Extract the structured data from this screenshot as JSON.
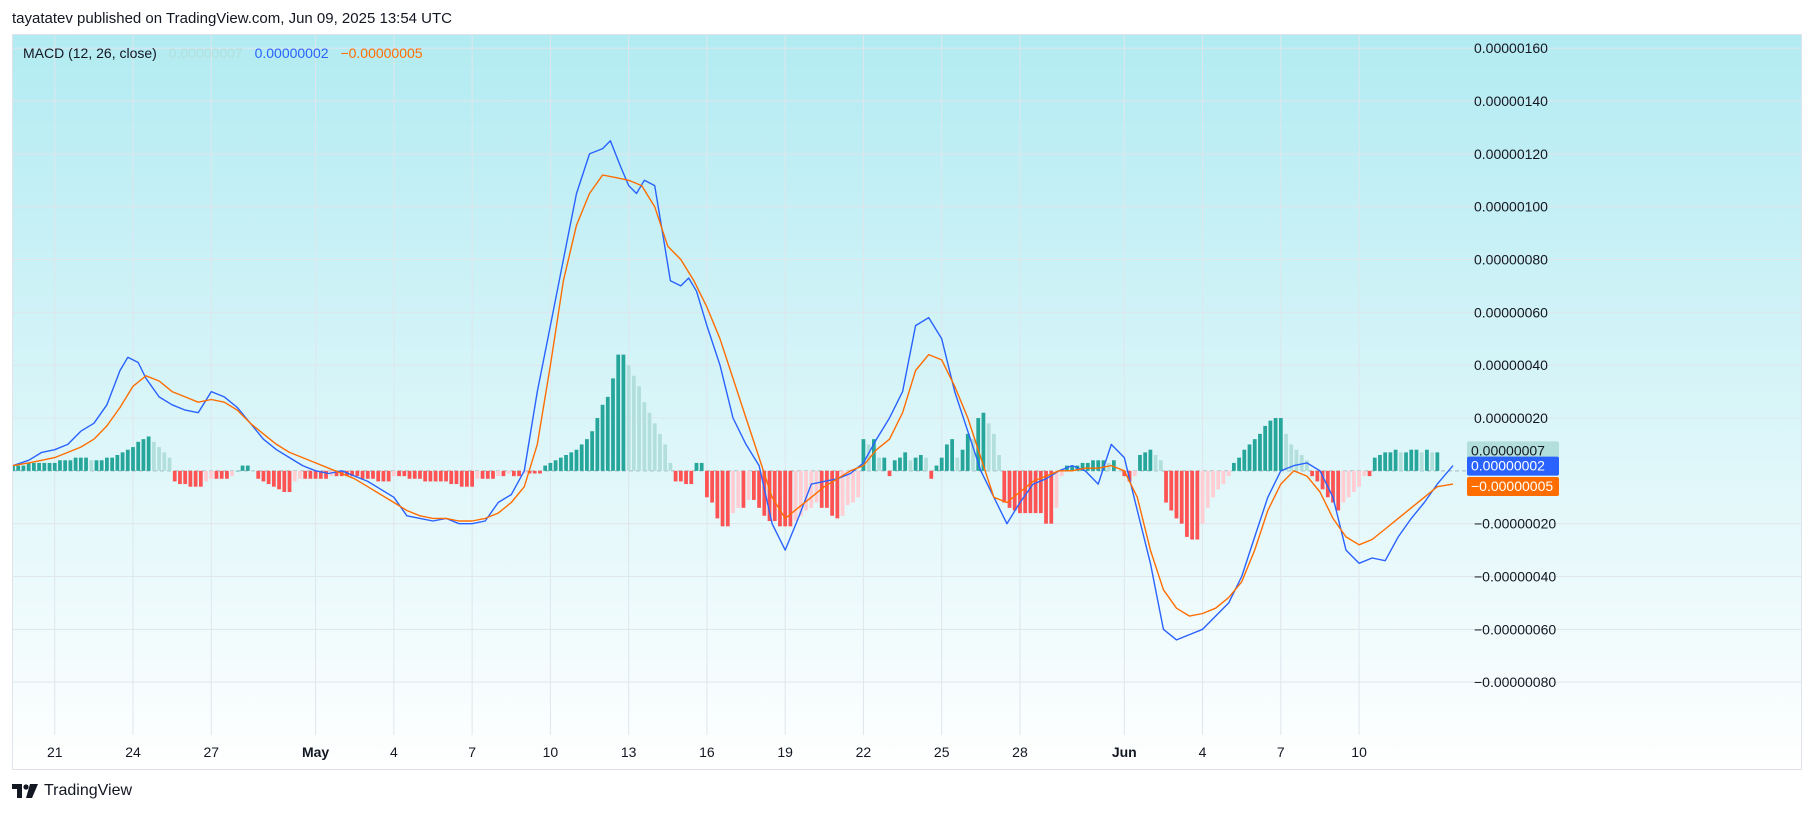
{
  "header": {
    "published": "tayatatev published on TradingView.com, Jun 09, 2025 13:54 UTC"
  },
  "legend": {
    "indicator": "MACD (12, 26, close)",
    "histogram_value": "0.00000007",
    "macd_value": "0.00000002",
    "signal_value": "−0.00000005"
  },
  "footer": {
    "brand": "TradingView"
  },
  "colors": {
    "macd": "#2962ff",
    "signal": "#ff6d00",
    "hist_pos_strong": "#26a69a",
    "hist_pos_weak": "#b2dfdb",
    "hist_neg_strong": "#ff5252",
    "hist_neg_weak": "#ffcdd2",
    "bg_top": "#b2ebf2",
    "bg_bottom": "#ffffff"
  },
  "chart_data": {
    "type": "line",
    "grid": true,
    "axis_price_labels": [
      "0.00000160",
      "0.00000140",
      "0.00000120",
      "0.00000100",
      "0.00000080",
      "0.00000060",
      "0.00000040",
      "0.00000020",
      "−0.00000020",
      "−0.00000040",
      "−0.00000060",
      "−0.00000080"
    ],
    "axis_price_values": [
      160,
      140,
      120,
      100,
      80,
      60,
      40,
      20,
      -20,
      -40,
      -60,
      -80
    ],
    "value_unit_note": "",
    "ylim": [
      -100,
      165
    ],
    "xlim": [
      -1.6,
      53.6
    ],
    "x_ticks": [
      {
        "x": 0,
        "label": "21",
        "bold": false
      },
      {
        "x": 3,
        "label": "24",
        "bold": false
      },
      {
        "x": 6,
        "label": "27",
        "bold": false
      },
      {
        "x": 10,
        "label": "May",
        "bold": true
      },
      {
        "x": 13,
        "label": "4",
        "bold": false
      },
      {
        "x": 16,
        "label": "7",
        "bold": false
      },
      {
        "x": 19,
        "label": "10",
        "bold": false
      },
      {
        "x": 22,
        "label": "13",
        "bold": false
      },
      {
        "x": 25,
        "label": "16",
        "bold": false
      },
      {
        "x": 28,
        "label": "19",
        "bold": false
      },
      {
        "x": 31,
        "label": "22",
        "bold": false
      },
      {
        "x": 34,
        "label": "25",
        "bold": false
      },
      {
        "x": 37,
        "label": "28",
        "bold": false
      },
      {
        "x": 41,
        "label": "Jun",
        "bold": true
      },
      {
        "x": 44,
        "label": "4",
        "bold": false
      },
      {
        "x": 47,
        "label": "7",
        "bold": false
      },
      {
        "x": 50,
        "label": "10",
        "bold": false
      }
    ],
    "last_value_tags": [
      {
        "label": "0.00000007",
        "value": 7,
        "color": "#b2dfdb",
        "text_color": "#131722"
      },
      {
        "label": "0.00000002",
        "value": 2,
        "color": "#2962ff",
        "text_color": "#ffffff"
      },
      {
        "label": "−0.00000005",
        "value": -5,
        "color": "#ff6d00",
        "text_color": "#ffffff"
      }
    ],
    "series": [
      {
        "name": "",
        "role": "macd",
        "points": [
          [
            -1.6,
            2
          ],
          [
            -1,
            4
          ],
          [
            -0.5,
            7
          ],
          [
            0,
            8
          ],
          [
            0.5,
            10
          ],
          [
            1,
            15
          ],
          [
            1.5,
            18
          ],
          [
            2,
            25
          ],
          [
            2.5,
            38
          ],
          [
            2.8,
            43
          ],
          [
            3.2,
            41
          ],
          [
            3.5,
            35
          ],
          [
            4,
            28
          ],
          [
            4.5,
            25
          ],
          [
            5,
            23
          ],
          [
            5.5,
            22
          ],
          [
            6,
            30
          ],
          [
            6.5,
            28
          ],
          [
            7,
            24
          ],
          [
            7.5,
            18
          ],
          [
            8,
            12
          ],
          [
            8.5,
            8
          ],
          [
            9,
            5
          ],
          [
            9.5,
            2
          ],
          [
            10,
            0
          ],
          [
            10.5,
            -1
          ],
          [
            11,
            0
          ],
          [
            11.5,
            -2
          ],
          [
            12,
            -4
          ],
          [
            12.5,
            -7
          ],
          [
            13,
            -10
          ],
          [
            13.5,
            -17
          ],
          [
            14,
            -18
          ],
          [
            14.5,
            -19
          ],
          [
            15,
            -18
          ],
          [
            15.5,
            -20
          ],
          [
            16,
            -20
          ],
          [
            16.5,
            -19
          ],
          [
            17,
            -12
          ],
          [
            17.5,
            -9
          ],
          [
            18,
            0
          ],
          [
            18.5,
            30
          ],
          [
            19,
            55
          ],
          [
            19.5,
            80
          ],
          [
            20,
            105
          ],
          [
            20.5,
            120
          ],
          [
            21,
            122
          ],
          [
            21.3,
            125
          ],
          [
            21.7,
            115
          ],
          [
            22,
            108
          ],
          [
            22.3,
            105
          ],
          [
            22.6,
            110
          ],
          [
            23,
            108
          ],
          [
            23.3,
            90
          ],
          [
            23.6,
            72
          ],
          [
            24,
            70
          ],
          [
            24.3,
            73
          ],
          [
            24.6,
            68
          ],
          [
            25,
            55
          ],
          [
            25.5,
            40
          ],
          [
            26,
            20
          ],
          [
            26.5,
            10
          ],
          [
            27,
            2
          ],
          [
            27.5,
            -20
          ],
          [
            28,
            -30
          ],
          [
            28.5,
            -18
          ],
          [
            29,
            -5
          ],
          [
            29.5,
            -4
          ],
          [
            30,
            -3
          ],
          [
            30.5,
            -1
          ],
          [
            31,
            3
          ],
          [
            31.5,
            12
          ],
          [
            32,
            20
          ],
          [
            32.5,
            30
          ],
          [
            33,
            55
          ],
          [
            33.5,
            58
          ],
          [
            34,
            50
          ],
          [
            34.5,
            30
          ],
          [
            35,
            15
          ],
          [
            35.5,
            0
          ],
          [
            36,
            -10
          ],
          [
            36.5,
            -20
          ],
          [
            37,
            -12
          ],
          [
            37.5,
            -5
          ],
          [
            38,
            -3
          ],
          [
            38.5,
            0
          ],
          [
            39,
            2
          ],
          [
            39.5,
            0
          ],
          [
            40,
            -5
          ],
          [
            40.5,
            10
          ],
          [
            41,
            5
          ],
          [
            41.5,
            -15
          ],
          [
            42,
            -35
          ],
          [
            42.5,
            -60
          ],
          [
            43,
            -64
          ],
          [
            43.5,
            -62
          ],
          [
            44,
            -60
          ],
          [
            44.5,
            -55
          ],
          [
            45,
            -50
          ],
          [
            45.5,
            -40
          ],
          [
            46,
            -25
          ],
          [
            46.5,
            -10
          ],
          [
            47,
            0
          ],
          [
            47.5,
            2
          ],
          [
            48,
            3
          ],
          [
            48.5,
            0
          ],
          [
            49,
            -10
          ],
          [
            49.5,
            -30
          ],
          [
            50,
            -35
          ],
          [
            50.5,
            -33
          ],
          [
            51,
            -34
          ],
          [
            51.5,
            -25
          ],
          [
            52,
            -18
          ],
          [
            52.5,
            -12
          ],
          [
            53,
            -5
          ],
          [
            53.6,
            2
          ]
        ]
      },
      {
        "name": "",
        "role": "signal",
        "points": [
          [
            -1.6,
            2
          ],
          [
            -1,
            3
          ],
          [
            -0.5,
            4
          ],
          [
            0,
            5
          ],
          [
            0.5,
            7
          ],
          [
            1,
            9
          ],
          [
            1.5,
            12
          ],
          [
            2,
            17
          ],
          [
            2.5,
            24
          ],
          [
            3,
            32
          ],
          [
            3.5,
            36
          ],
          [
            4,
            34
          ],
          [
            4.5,
            30
          ],
          [
            5,
            28
          ],
          [
            5.5,
            26
          ],
          [
            6,
            27
          ],
          [
            6.5,
            26
          ],
          [
            7,
            23
          ],
          [
            7.5,
            18
          ],
          [
            8,
            14
          ],
          [
            8.5,
            10
          ],
          [
            9,
            7
          ],
          [
            9.5,
            5
          ],
          [
            10,
            3
          ],
          [
            10.5,
            1
          ],
          [
            11,
            -1
          ],
          [
            11.5,
            -3
          ],
          [
            12,
            -6
          ],
          [
            12.5,
            -9
          ],
          [
            13,
            -12
          ],
          [
            13.5,
            -15
          ],
          [
            14,
            -17
          ],
          [
            14.5,
            -18
          ],
          [
            15,
            -18
          ],
          [
            15.5,
            -19
          ],
          [
            16,
            -19
          ],
          [
            16.5,
            -18
          ],
          [
            17,
            -16
          ],
          [
            17.5,
            -12
          ],
          [
            18,
            -6
          ],
          [
            18.5,
            10
          ],
          [
            19,
            40
          ],
          [
            19.5,
            72
          ],
          [
            20,
            93
          ],
          [
            20.5,
            105
          ],
          [
            21,
            112
          ],
          [
            21.5,
            111
          ],
          [
            22,
            110
          ],
          [
            22.5,
            108
          ],
          [
            23,
            100
          ],
          [
            23.5,
            85
          ],
          [
            24,
            80
          ],
          [
            24.5,
            72
          ],
          [
            25,
            62
          ],
          [
            25.5,
            50
          ],
          [
            26,
            35
          ],
          [
            26.5,
            20
          ],
          [
            27,
            5
          ],
          [
            27.5,
            -10
          ],
          [
            28,
            -18
          ],
          [
            28.5,
            -14
          ],
          [
            29,
            -10
          ],
          [
            29.5,
            -6
          ],
          [
            30,
            -3
          ],
          [
            30.5,
            0
          ],
          [
            31,
            2
          ],
          [
            31.5,
            8
          ],
          [
            32,
            12
          ],
          [
            32.5,
            22
          ],
          [
            33,
            38
          ],
          [
            33.5,
            44
          ],
          [
            34,
            42
          ],
          [
            34.5,
            32
          ],
          [
            35,
            20
          ],
          [
            35.5,
            5
          ],
          [
            36,
            -10
          ],
          [
            36.5,
            -12
          ],
          [
            37,
            -8
          ],
          [
            37.5,
            -4
          ],
          [
            38,
            -2
          ],
          [
            38.5,
            0
          ],
          [
            39,
            0
          ],
          [
            39.5,
            1
          ],
          [
            40,
            1
          ],
          [
            40.5,
            2
          ],
          [
            41,
            0
          ],
          [
            41.5,
            -10
          ],
          [
            42,
            -30
          ],
          [
            42.5,
            -45
          ],
          [
            43,
            -52
          ],
          [
            43.5,
            -55
          ],
          [
            44,
            -54
          ],
          [
            44.5,
            -52
          ],
          [
            45,
            -48
          ],
          [
            45.5,
            -42
          ],
          [
            46,
            -30
          ],
          [
            46.5,
            -15
          ],
          [
            47,
            -5
          ],
          [
            47.5,
            0
          ],
          [
            48,
            -2
          ],
          [
            48.5,
            -8
          ],
          [
            49,
            -18
          ],
          [
            49.5,
            -25
          ],
          [
            50,
            -28
          ],
          [
            50.5,
            -26
          ],
          [
            51,
            -22
          ],
          [
            51.5,
            -18
          ],
          [
            52,
            -14
          ],
          [
            52.5,
            -10
          ],
          [
            53,
            -6
          ],
          [
            53.6,
            -5
          ]
        ]
      }
    ],
    "histogram": {
      "name": "",
      "x_start": -1.6,
      "x_step": 0.2,
      "values": [
        2,
        2,
        2,
        3,
        3,
        3,
        3,
        3,
        3,
        4,
        4,
        4,
        5,
        5,
        5,
        4,
        4,
        4,
        5,
        5,
        6,
        7,
        8,
        9,
        11,
        12,
        13,
        11,
        9,
        7,
        5,
        -4,
        -5,
        -5,
        -6,
        -6,
        -6,
        -4,
        -3,
        -3,
        -3,
        -3,
        -2,
        0,
        2,
        2,
        0,
        -3,
        -4,
        -5,
        -6,
        -7,
        -8,
        -8,
        -4,
        -3,
        -3,
        -3,
        -3,
        -3,
        -3,
        -2,
        -2,
        -2,
        -2,
        -2,
        -2,
        -3,
        -3,
        -3,
        -4,
        -4,
        -4,
        -2,
        -2,
        -2,
        -3,
        -3,
        -3,
        -4,
        -4,
        -4,
        -4,
        -4,
        -5,
        -5,
        -6,
        -6,
        -6,
        -3,
        -3,
        -3,
        -3,
        -2,
        -2,
        -1,
        -2,
        -2,
        -1,
        -1,
        -1,
        -1,
        2,
        3,
        4,
        5,
        6,
        7,
        8,
        10,
        12,
        15,
        20,
        25,
        28,
        35,
        44,
        44,
        40,
        36,
        32,
        26,
        22,
        18,
        14,
        10,
        3,
        -4,
        -4,
        -5,
        -5,
        3,
        3,
        -10,
        -12,
        -18,
        -21,
        -21,
        -16,
        -14,
        -14,
        -11,
        -11,
        -14,
        -17,
        -19,
        -19,
        -21,
        -21,
        -21,
        -19,
        -17,
        -15,
        -14,
        -12,
        -14,
        -14,
        -17,
        -18,
        -17,
        -13,
        -12,
        -10,
        12,
        10,
        12,
        5,
        5,
        -2,
        4,
        5,
        7,
        4,
        5,
        6,
        5,
        -3,
        2,
        5,
        10,
        12,
        5,
        8,
        14,
        12,
        20,
        22,
        18,
        14,
        6,
        -12,
        -14,
        -15,
        -16,
        -16,
        -16,
        -16,
        -16,
        -20,
        -20,
        -14,
        -2,
        2,
        2,
        2,
        3,
        3,
        4,
        4,
        4,
        3,
        4,
        0,
        -2,
        -4,
        -2,
        6,
        7,
        8,
        6,
        4,
        -12,
        -15,
        -18,
        -20,
        -25,
        -26,
        -26,
        -20,
        -14,
        -10,
        -7,
        -5,
        -2,
        3,
        5,
        8,
        10,
        12,
        14,
        17,
        19,
        20,
        20,
        14,
        10,
        8,
        6,
        4,
        -2,
        -4,
        -7,
        -10,
        -12,
        -15,
        -12,
        -10,
        -8,
        -6,
        -2,
        -2,
        5,
        6,
        7,
        7,
        8,
        7,
        7,
        8,
        8,
        7,
        8,
        7,
        7
      ]
    }
  }
}
